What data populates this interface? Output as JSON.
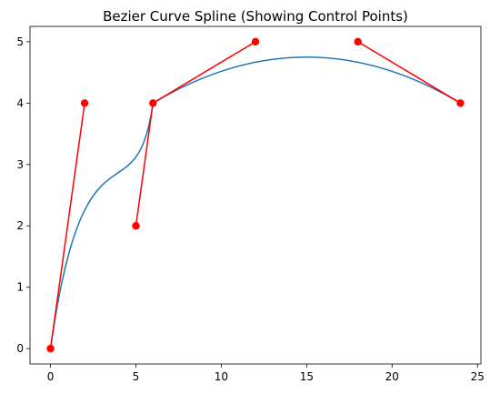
{
  "chart_data": {
    "type": "line",
    "title": "Bezier Curve Spline (Showing Control Points)",
    "xlabel": "",
    "ylabel": "",
    "xlim": [
      -1.2,
      25.2
    ],
    "ylim": [
      -0.25,
      5.25
    ],
    "xticks": [
      0,
      5,
      10,
      15,
      20,
      25
    ],
    "yticks": [
      0,
      1,
      2,
      3,
      4,
      5
    ],
    "grid": false,
    "legend": "none",
    "curve_color": "#1f77b4",
    "control_color": "#ff0000",
    "segments": [
      {
        "p0": [
          0,
          0
        ],
        "p1": [
          2,
          4
        ],
        "p2": [
          5,
          2
        ],
        "p3": [
          6,
          4
        ]
      },
      {
        "p0": [
          6,
          4
        ],
        "p1": [
          12,
          5
        ],
        "p2": [
          18,
          5
        ],
        "p3": [
          24,
          4
        ]
      }
    ],
    "control_lines": [
      [
        [
          0,
          0
        ],
        [
          2,
          4
        ]
      ],
      [
        [
          5,
          2
        ],
        [
          6,
          4
        ]
      ],
      [
        [
          6,
          4
        ],
        [
          12,
          5
        ]
      ],
      [
        [
          18,
          5
        ],
        [
          24,
          4
        ]
      ]
    ],
    "control_points": [
      [
        0,
        0
      ],
      [
        2,
        4
      ],
      [
        5,
        2
      ],
      [
        6,
        4
      ],
      [
        12,
        5
      ],
      [
        18,
        5
      ],
      [
        24,
        4
      ]
    ]
  }
}
